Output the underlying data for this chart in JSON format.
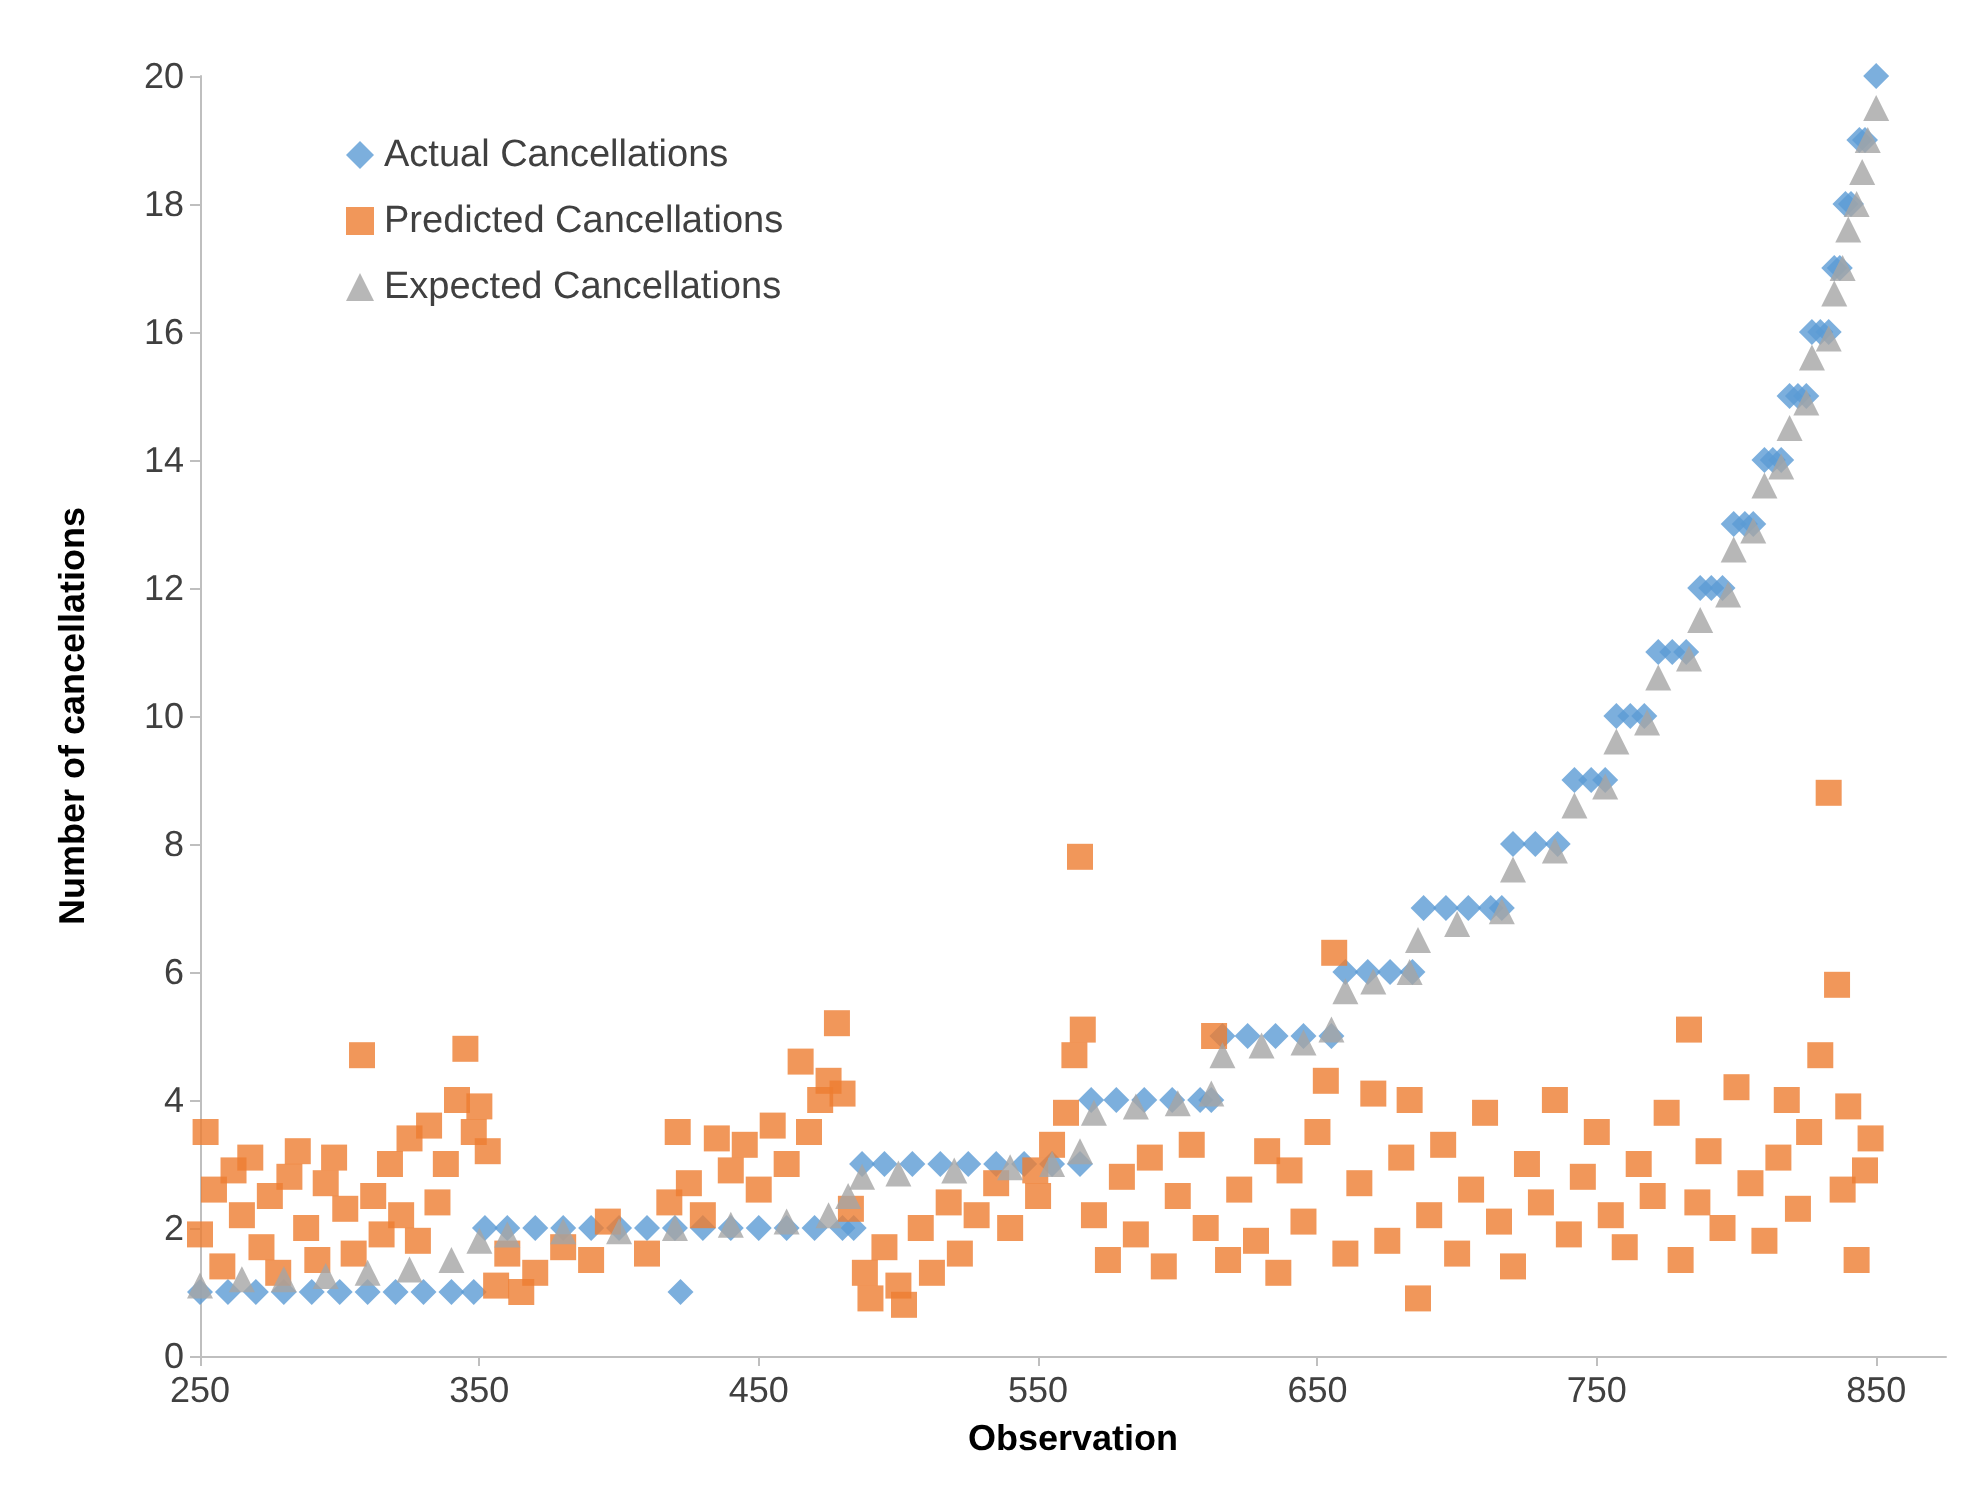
{
  "chart_data": {
    "type": "scatter",
    "xlabel": "Observation",
    "ylabel": "Number of cancellations",
    "xlim": [
      250,
      875
    ],
    "xticks": [
      250,
      350,
      450,
      550,
      650,
      750,
      850
    ],
    "ylim": [
      0,
      20
    ],
    "yticks": [
      0,
      2,
      4,
      6,
      8,
      10,
      12,
      14,
      16,
      18,
      20
    ],
    "grid": false,
    "legend": "top left",
    "series": [
      {
        "name": "Actual Cancellations",
        "color": "#5b9bd5",
        "marker": "diamond",
        "x": [
          250,
          260,
          270,
          280,
          290,
          300,
          310,
          320,
          330,
          340,
          348,
          352,
          360,
          370,
          380,
          390,
          400,
          410,
          420,
          422,
          430,
          440,
          450,
          460,
          470,
          480,
          484,
          487,
          495,
          505,
          515,
          525,
          535,
          545,
          555,
          565,
          569,
          578,
          588,
          598,
          608,
          612,
          616,
          625,
          635,
          645,
          655,
          660,
          668,
          676,
          684,
          688,
          696,
          704,
          712,
          716,
          720,
          728,
          736,
          742,
          748,
          753,
          757,
          762,
          767,
          772,
          777,
          782,
          787,
          791,
          795,
          799,
          803,
          806,
          810,
          813,
          816,
          819,
          822,
          825,
          827,
          830,
          833,
          835,
          837,
          839,
          841,
          844,
          846,
          850
        ],
        "values": [
          1,
          1,
          1,
          1,
          1,
          1,
          1,
          1,
          1,
          1,
          1,
          2,
          2,
          2,
          2,
          2,
          2,
          2,
          2,
          1,
          2,
          2,
          2,
          2,
          2,
          2,
          2,
          3,
          3,
          3,
          3,
          3,
          3,
          3,
          3,
          3,
          4,
          4,
          4,
          4,
          4,
          4,
          5,
          5,
          5,
          5,
          5,
          6,
          6,
          6,
          6,
          7,
          7,
          7,
          7,
          7,
          8,
          8,
          8,
          9,
          9,
          9,
          10,
          10,
          10,
          11,
          11,
          11,
          12,
          12,
          12,
          13,
          13,
          13,
          14,
          14,
          14,
          15,
          15,
          15,
          16,
          16,
          16,
          17,
          17,
          18,
          18,
          19,
          19,
          20
        ]
      },
      {
        "name": "Predicted Cancellations",
        "color": "#ed7d31",
        "marker": "square",
        "x": [
          250,
          252,
          255,
          258,
          262,
          265,
          268,
          272,
          275,
          278,
          282,
          285,
          288,
          292,
          295,
          298,
          302,
          305,
          308,
          312,
          315,
          318,
          322,
          325,
          328,
          332,
          335,
          338,
          342,
          345,
          348,
          350,
          353,
          356,
          360,
          365,
          370,
          380,
          390,
          396,
          410,
          418,
          421,
          425,
          430,
          435,
          440,
          445,
          450,
          455,
          460,
          465,
          468,
          472,
          475,
          478,
          480,
          483,
          488,
          490,
          495,
          500,
          502,
          508,
          512,
          518,
          522,
          528,
          535,
          540,
          549,
          550,
          555,
          560,
          563,
          565,
          566,
          570,
          575,
          580,
          585,
          590,
          595,
          600,
          605,
          610,
          613,
          618,
          622,
          628,
          632,
          636,
          640,
          645,
          650,
          653,
          656,
          660,
          665,
          670,
          675,
          680,
          683,
          686,
          690,
          695,
          700,
          705,
          710,
          715,
          720,
          725,
          730,
          735,
          740,
          745,
          750,
          755,
          760,
          765,
          770,
          775,
          780,
          783,
          786,
          790,
          795,
          800,
          805,
          810,
          815,
          818,
          822,
          826,
          830,
          833,
          836,
          838,
          840,
          843,
          846,
          848
        ],
        "values": [
          1.9,
          3.5,
          2.6,
          1.4,
          2.9,
          2.2,
          3.1,
          1.7,
          2.5,
          1.3,
          2.8,
          3.2,
          2.0,
          1.5,
          2.7,
          3.1,
          2.3,
          1.6,
          4.7,
          2.5,
          1.9,
          3.0,
          2.2,
          3.4,
          1.8,
          3.6,
          2.4,
          3.0,
          4.0,
          4.8,
          3.5,
          3.9,
          3.2,
          1.1,
          1.6,
          1.0,
          1.3,
          1.7,
          1.5,
          2.1,
          1.6,
          2.4,
          3.5,
          2.7,
          2.2,
          3.4,
          2.9,
          3.3,
          2.6,
          3.6,
          3.0,
          4.6,
          3.5,
          4.0,
          4.3,
          5.2,
          4.1,
          2.3,
          1.3,
          0.9,
          1.7,
          1.1,
          0.8,
          2.0,
          1.3,
          2.4,
          1.6,
          2.2,
          2.7,
          2.0,
          2.9,
          2.5,
          3.3,
          3.8,
          4.7,
          7.8,
          5.1,
          2.2,
          1.5,
          2.8,
          1.9,
          3.1,
          1.4,
          2.5,
          3.3,
          2.0,
          5.0,
          1.5,
          2.6,
          1.8,
          3.2,
          1.3,
          2.9,
          2.1,
          3.5,
          4.3,
          6.3,
          1.6,
          2.7,
          4.1,
          1.8,
          3.1,
          4.0,
          0.9,
          2.2,
          3.3,
          1.6,
          2.6,
          3.8,
          2.1,
          1.4,
          3.0,
          2.4,
          4.0,
          1.9,
          2.8,
          3.5,
          2.2,
          1.7,
          3.0,
          2.5,
          3.8,
          1.5,
          5.1,
          2.4,
          3.2,
          2.0,
          4.2,
          2.7,
          1.8,
          3.1,
          4.0,
          2.3,
          3.5,
          4.7,
          8.8,
          5.8,
          2.6,
          3.9,
          1.5,
          2.9,
          3.4
        ]
      },
      {
        "name": "Expected Cancellations",
        "color": "#a5a5a5",
        "marker": "triangle",
        "x": [
          250,
          265,
          280,
          295,
          310,
          325,
          340,
          350,
          360,
          380,
          400,
          420,
          440,
          460,
          475,
          482,
          487,
          500,
          520,
          540,
          555,
          565,
          570,
          585,
          600,
          612,
          616,
          630,
          645,
          655,
          660,
          670,
          683,
          686,
          700,
          716,
          720,
          735,
          742,
          753,
          757,
          768,
          772,
          783,
          787,
          797,
          799,
          806,
          810,
          816,
          819,
          825,
          827,
          833,
          835,
          838,
          840,
          843,
          845,
          847,
          850
        ],
        "values": [
          1.1,
          1.2,
          1.2,
          1.25,
          1.3,
          1.35,
          1.5,
          1.8,
          1.9,
          1.95,
          1.95,
          2.0,
          2.05,
          2.1,
          2.2,
          2.5,
          2.8,
          2.85,
          2.9,
          2.95,
          3.0,
          3.2,
          3.8,
          3.9,
          3.95,
          4.1,
          4.7,
          4.85,
          4.9,
          5.1,
          5.7,
          5.85,
          6.0,
          6.5,
          6.75,
          6.95,
          7.6,
          7.9,
          8.6,
          8.9,
          9.6,
          9.9,
          10.6,
          10.9,
          11.5,
          11.9,
          12.6,
          12.9,
          13.6,
          13.9,
          14.5,
          14.9,
          15.6,
          15.9,
          16.6,
          17,
          17.6,
          18,
          18.5,
          19,
          19.5
        ]
      }
    ]
  }
}
